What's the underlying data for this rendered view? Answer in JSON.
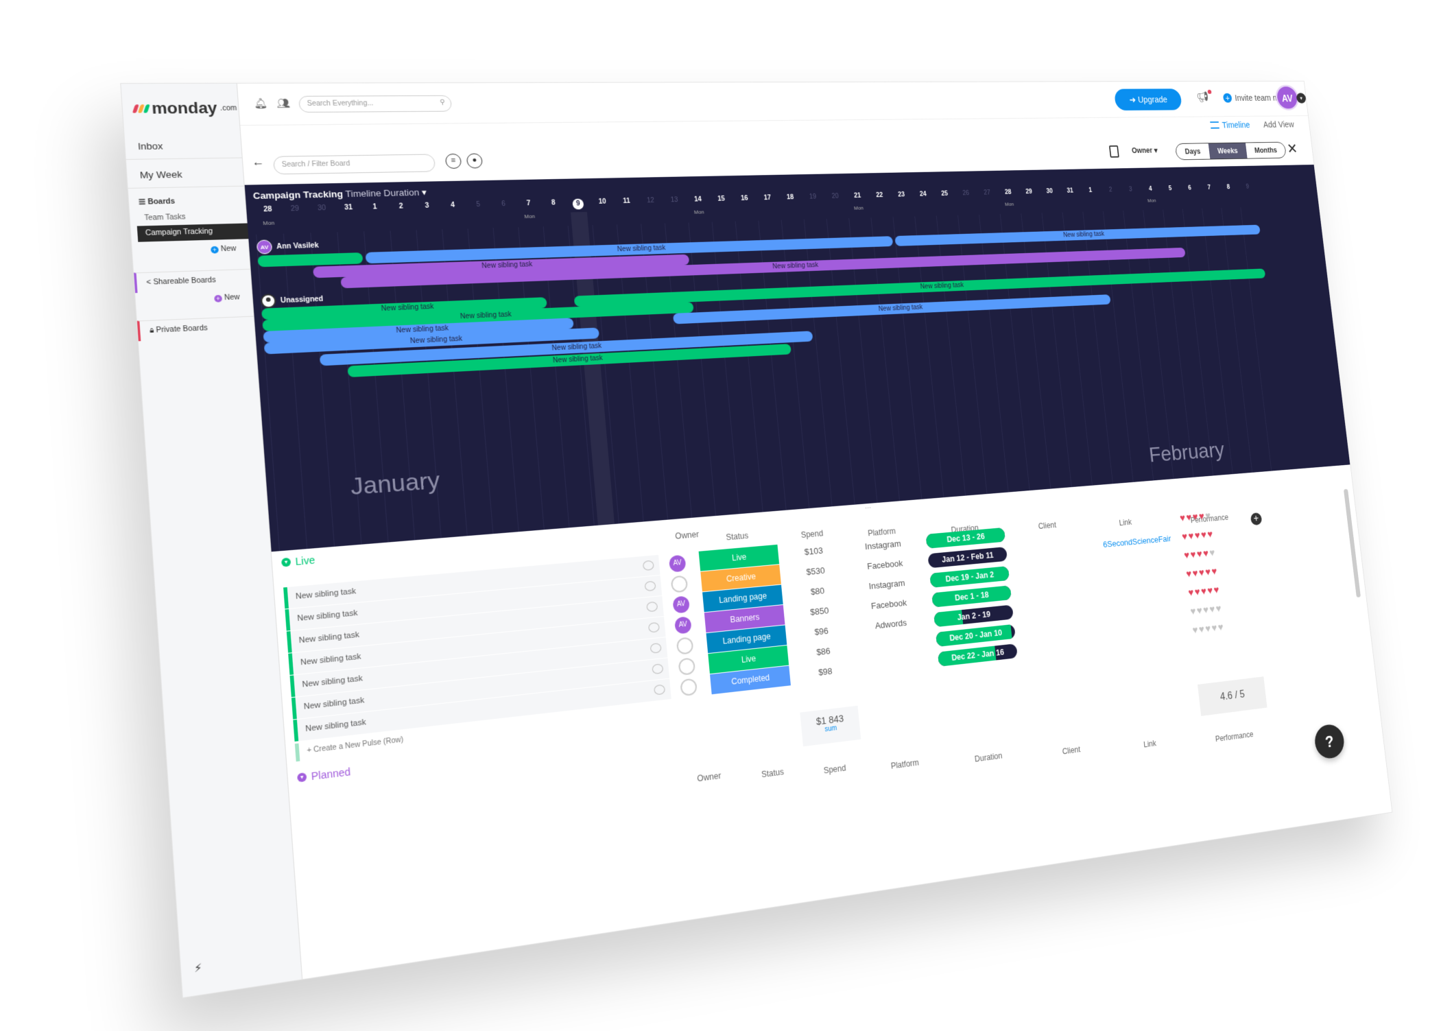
{
  "sidebar": {
    "logo": "monday",
    "logo_suffix": ".com",
    "inbox": "Inbox",
    "my_week": "My Week",
    "boards": "Boards",
    "team_tasks": "Team Tasks",
    "campaign_tracking": "Campaign Tracking",
    "new": "New",
    "shareable_boards": "Shareable Boards",
    "private_boards": "Private Boards"
  },
  "topbar": {
    "search_placeholder": "Search Everything...",
    "upgrade": "Upgrade",
    "invite": "Invite team members",
    "avatar": "AV"
  },
  "views": {
    "timeline": "Timeline",
    "add_view": "Add View"
  },
  "timeline": {
    "filter_placeholder": "Search / Filter Board",
    "owner": "Owner",
    "scale": [
      "Days",
      "Weeks",
      "Months"
    ],
    "board_name": "Campaign Tracking",
    "view_name": "Timeline Duration",
    "days": [
      {
        "n": "28",
        "dim": false
      },
      {
        "n": "29",
        "dim": true
      },
      {
        "n": "30",
        "dim": true
      },
      {
        "n": "31",
        "dim": false
      },
      {
        "n": "1",
        "dim": false
      },
      {
        "n": "2",
        "dim": false
      },
      {
        "n": "3",
        "dim": false
      },
      {
        "n": "4",
        "dim": false
      },
      {
        "n": "5",
        "dim": true
      },
      {
        "n": "6",
        "dim": true
      },
      {
        "n": "7",
        "dim": false
      },
      {
        "n": "8",
        "dim": false
      },
      {
        "n": "9",
        "dim": false,
        "today": true
      },
      {
        "n": "10",
        "dim": false
      },
      {
        "n": "11",
        "dim": false
      },
      {
        "n": "12",
        "dim": true
      },
      {
        "n": "13",
        "dim": true
      },
      {
        "n": "14",
        "dim": false
      },
      {
        "n": "15",
        "dim": false
      },
      {
        "n": "16",
        "dim": false
      },
      {
        "n": "17",
        "dim": false
      },
      {
        "n": "18",
        "dim": false
      },
      {
        "n": "19",
        "dim": true
      },
      {
        "n": "20",
        "dim": true
      },
      {
        "n": "21",
        "dim": false
      },
      {
        "n": "22",
        "dim": false
      },
      {
        "n": "23",
        "dim": false
      },
      {
        "n": "24",
        "dim": false
      },
      {
        "n": "25",
        "dim": false
      },
      {
        "n": "26",
        "dim": true
      },
      {
        "n": "27",
        "dim": true
      },
      {
        "n": "28",
        "dim": false
      },
      {
        "n": "29",
        "dim": false
      },
      {
        "n": "30",
        "dim": false
      },
      {
        "n": "31",
        "dim": false
      },
      {
        "n": "1",
        "dim": false
      },
      {
        "n": "2",
        "dim": true
      },
      {
        "n": "3",
        "dim": true
      },
      {
        "n": "4",
        "dim": false
      },
      {
        "n": "5",
        "dim": false
      },
      {
        "n": "6",
        "dim": false
      },
      {
        "n": "7",
        "dim": false
      },
      {
        "n": "8",
        "dim": false
      },
      {
        "n": "9",
        "dim": true
      }
    ],
    "mon_label": "Mon",
    "mon_indices": [
      0,
      10,
      17,
      24,
      31,
      38
    ],
    "owner_1": "Ann Vasilek",
    "owner_1_initials": "AV",
    "owner_2": "Unassigned",
    "bar_label": "New sibling task",
    "bars": [
      {
        "color": "green",
        "start": 0,
        "end": 4,
        "row": 0,
        "label": ""
      },
      {
        "color": "blue",
        "start": 4,
        "end": 26,
        "row": 0,
        "label": "New sibling task"
      },
      {
        "color": "blue",
        "start": 26,
        "end": 44,
        "row": 0,
        "label": "New sibling task"
      },
      {
        "color": "purple",
        "start": 2,
        "end": 17,
        "row": 1,
        "label": "New sibling task"
      },
      {
        "color": "purple",
        "start": 3,
        "end": 40,
        "row": 2,
        "label": "New sibling task"
      },
      {
        "color": "green",
        "start": 0,
        "end": 11,
        "row": 4,
        "label": "New sibling task"
      },
      {
        "color": "green",
        "start": 12,
        "end": 44,
        "row": 4,
        "label": "New sibling task"
      },
      {
        "color": "green",
        "start": 0,
        "end": 17,
        "row": 5,
        "label": "New sibling task"
      },
      {
        "color": "blue",
        "start": 0,
        "end": 12,
        "row": 6,
        "label": "New sibling task"
      },
      {
        "color": "blue",
        "start": 16,
        "end": 36,
        "row": 6,
        "label": "New sibling task"
      },
      {
        "color": "blue",
        "start": 0,
        "end": 13,
        "row": 7,
        "label": "New sibling task"
      },
      {
        "color": "blue",
        "start": 2,
        "end": 22,
        "row": 8,
        "label": "New sibling task"
      },
      {
        "color": "green",
        "start": 3,
        "end": 21,
        "row": 9,
        "label": "New sibling task"
      }
    ],
    "month_1": "January",
    "month_2": "February"
  },
  "table": {
    "group_live": "Live",
    "group_planned": "Planned",
    "columns": {
      "owner": "Owner",
      "status": "Status",
      "spend": "Spend",
      "platform": "Platform",
      "duration": "Duration",
      "client": "Client",
      "link": "Link",
      "performance": "Performance"
    },
    "rows": [
      {
        "name": "New sibling task",
        "owner": "AV",
        "status": "Live",
        "status_color": "#00c875",
        "spend": "$103",
        "platform": "Instagram",
        "duration": "Dec 13 - 26",
        "progress": 1.0,
        "link": "",
        "hearts": 4
      },
      {
        "name": "New sibling task",
        "owner": "",
        "status": "Creative",
        "status_color": "#fdab3d",
        "spend": "$530",
        "platform": "Facebook",
        "duration": "Jan 12 - Feb 11",
        "progress": 0.0,
        "link": "6SecondScienceFair",
        "hearts": 5
      },
      {
        "name": "New sibling task",
        "owner": "AV",
        "status": "Landing page",
        "status_color": "#0086c0",
        "spend": "$80",
        "platform": "Instagram",
        "duration": "Dec 19 - Jan 2",
        "progress": 1.0,
        "link": "",
        "hearts": 4
      },
      {
        "name": "New sibling task",
        "owner": "AV",
        "status": "Banners",
        "status_color": "#a25ddc",
        "spend": "$850",
        "platform": "Facebook",
        "duration": "Dec 1 - 18",
        "progress": 1.0,
        "link": "",
        "hearts": 5
      },
      {
        "name": "New sibling task",
        "owner": "",
        "status": "Landing page",
        "status_color": "#0086c0",
        "spend": "$96",
        "platform": "Adwords",
        "duration": "Jan 2 - 19",
        "progress": 0.35,
        "link": "",
        "hearts": 5
      },
      {
        "name": "New sibling task",
        "owner": "",
        "status": "Live",
        "status_color": "#00c875",
        "spend": "$86",
        "platform": "",
        "duration": "Dec 20 - Jan 10",
        "progress": 0.95,
        "link": "",
        "hearts": 0
      },
      {
        "name": "New sibling task",
        "owner": "",
        "status": "Completed",
        "status_color": "#579bfc",
        "spend": "$98",
        "platform": "",
        "duration": "Dec 22 - Jan 16",
        "progress": 0.72,
        "link": "",
        "hearts": 0
      }
    ],
    "create_row": "+ Create a New Pulse (Row)",
    "sum_value": "$1 843",
    "sum_label": "sum",
    "performance_avg": "4.6 / 5"
  },
  "colors": {
    "accent": "#0a8ff0",
    "dark_bg": "#1e1e3f",
    "green": "#00c875",
    "blue": "#579bfc",
    "purple": "#a25ddc",
    "heart": "#e2445c"
  },
  "help": "?"
}
